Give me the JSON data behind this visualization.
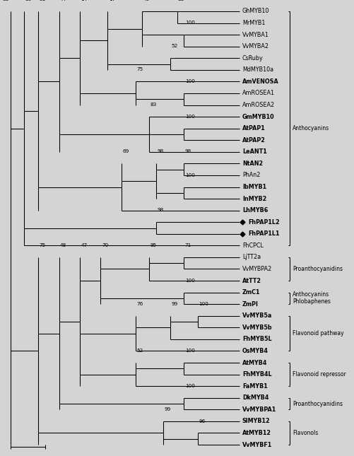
{
  "background_color": "#d4d4d4",
  "fig_width": 5.01,
  "fig_height": 6.45,
  "bold_taxa": [
    "AmVENOSA",
    "GmMYB10",
    "AtPAP1",
    "AtPAP2",
    "LeANT1",
    "NtAN2",
    "IbMYB1",
    "InMYB2",
    "LhMYB6",
    "FhPAP1L2",
    "FhPAP1L1",
    "AtTT2",
    "ZmC1",
    "ZmPI",
    "VvMYB5a",
    "VvMYB5b",
    "FhMYB5L",
    "OsMYB4",
    "AtMYB4",
    "FhMYB4L",
    "FaMYB1",
    "DkMYB4",
    "VvMYBPA1",
    "SlMYB12",
    "AtMYB12",
    "VvMYBF1"
  ],
  "diamond_taxa": [
    "FhPAP1L2",
    "FhPAP1L1"
  ]
}
